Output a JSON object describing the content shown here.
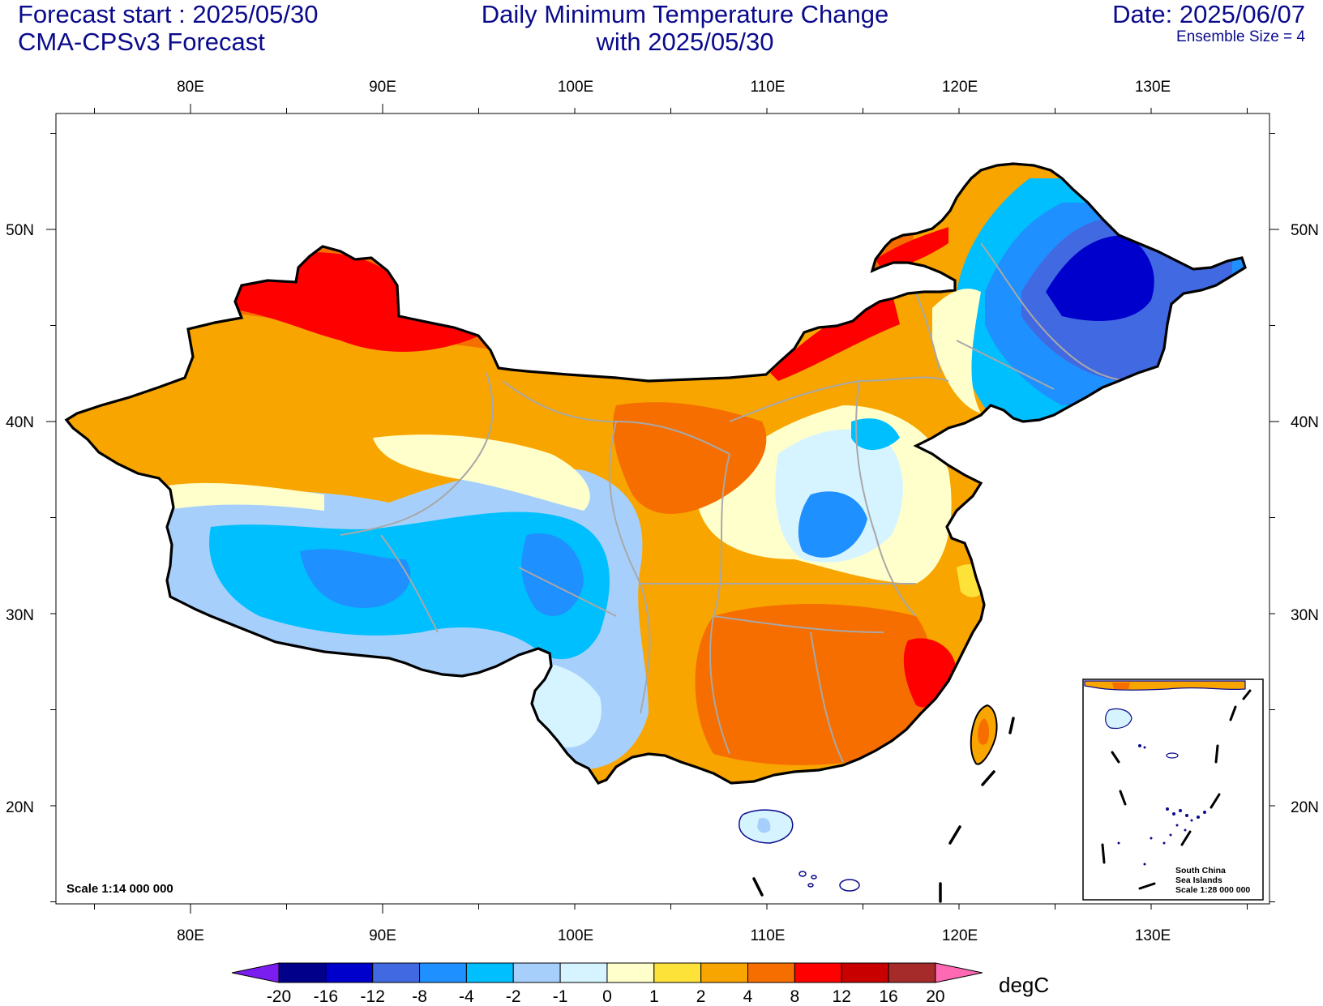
{
  "header": {
    "forecast_start": "Forecast start : 2025/05/30",
    "model": "CMA-CPSv3 Forecast",
    "title_line1": "Daily Minimum Temperature Change",
    "title_line2": "with 2025/05/30",
    "date": "Date: 2025/06/07",
    "ensemble": "Ensemble Size = 4"
  },
  "axes": {
    "lon_labels": [
      "80E",
      "90E",
      "100E",
      "110E",
      "120E",
      "130E"
    ],
    "lat_labels": [
      "50N",
      "40N",
      "30N",
      "20N"
    ]
  },
  "map": {
    "scale": "Scale 1:14 000 000",
    "inset_title1": "South China",
    "inset_title2": "Sea Islands",
    "inset_scale": "Scale 1:28 000 000"
  },
  "colorbar": {
    "unit": "degC",
    "levels": [
      "-20",
      "-16",
      "-12",
      "-8",
      "-4",
      "-2",
      "-1",
      "0",
      "1",
      "2",
      "4",
      "8",
      "12",
      "16",
      "20"
    ],
    "colors": [
      "#7a1ef0",
      "#00008b",
      "#0000cd",
      "#4169e1",
      "#1e90ff",
      "#00bfff",
      "#a6d0fb",
      "#d6f4ff",
      "#ffffcc",
      "#fde23a",
      "#f8a500",
      "#f66e00",
      "#ff0000",
      "#c80000",
      "#a52a2a",
      "#ff69b4"
    ]
  }
}
